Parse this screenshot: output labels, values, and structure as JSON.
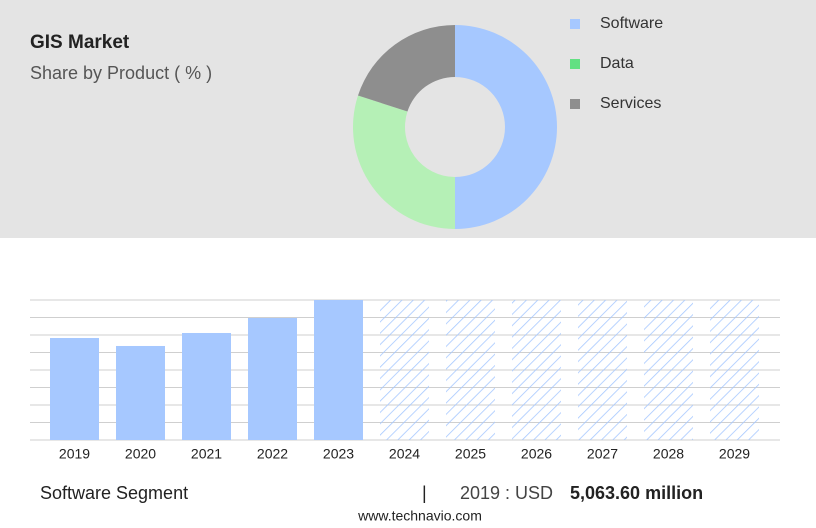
{
  "chart_data": [
    {
      "type": "pie",
      "title": "GIS Market",
      "subtitle": "Share by Product ( % )",
      "categories": [
        "Software",
        "Data",
        "Services"
      ],
      "values": [
        50,
        30,
        20
      ],
      "colors": [
        "#a6c8ff",
        "#b5f0b6",
        "#8e8e8e"
      ],
      "legend_colors": [
        "#a6c8ff",
        "#62e082",
        "#8e8e8e"
      ],
      "donut": true
    },
    {
      "type": "bar",
      "categories": [
        "2019",
        "2020",
        "2021",
        "2022",
        "2023",
        "2024",
        "2025",
        "2026",
        "2027",
        "2028",
        "2029"
      ],
      "values": [
        5063.6,
        4667,
        5312,
        6056,
        6950,
        null,
        null,
        null,
        null,
        null,
        null
      ],
      "color": "#a6c8ff",
      "ylim": [
        0,
        6950
      ],
      "grid": true
    }
  ],
  "footer": {
    "segment": "Software Segment",
    "separator": "|",
    "year_label": "2019 : USD",
    "value": "5,063.60 million",
    "site": "www.technavio.com"
  }
}
